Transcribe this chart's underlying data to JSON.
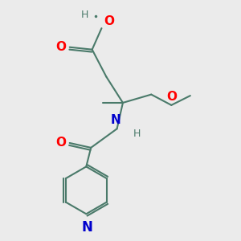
{
  "bg_color": "#ebebeb",
  "bond_color": "#4a7a6a",
  "bond_width": 1.5,
  "atom_colors": {
    "O": "#ff0000",
    "N": "#0000cc",
    "H_gray": "#4a7a6a"
  },
  "font_size_atoms": 11,
  "font_size_small": 9,
  "xlim": [
    0,
    10
  ],
  "ylim": [
    0,
    10
  ]
}
